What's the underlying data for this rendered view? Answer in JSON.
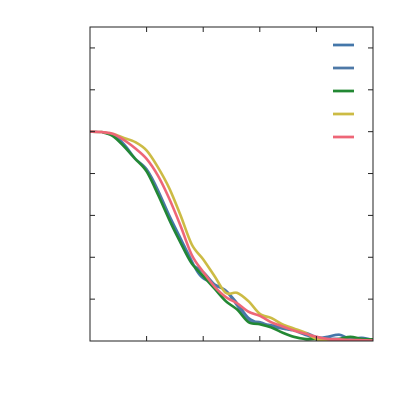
{
  "chart_data": {
    "type": "line",
    "title": "",
    "xlabel": "",
    "ylabel": "",
    "xlim": [
      0,
      5
    ],
    "ylim": [
      0,
      1.5
    ],
    "grid": false,
    "legend": {
      "placement": "top-right",
      "entries_text_visible": false
    },
    "series": [
      {
        "color": "#4477AA",
        "points": [
          [
            0,
            1
          ],
          [
            0.2,
            0.998
          ],
          [
            0.4,
            0.985
          ],
          [
            0.6,
            0.94
          ],
          [
            0.8,
            0.87
          ],
          [
            1.0,
            0.82
          ],
          [
            1.2,
            0.72
          ],
          [
            1.4,
            0.6
          ],
          [
            1.6,
            0.49
          ],
          [
            1.8,
            0.38
          ],
          [
            1.9,
            0.33
          ],
          [
            2.0,
            0.3
          ],
          [
            2.2,
            0.27
          ],
          [
            2.4,
            0.24
          ],
          [
            2.6,
            0.18
          ],
          [
            2.8,
            0.11
          ],
          [
            3.0,
            0.085
          ],
          [
            3.2,
            0.075
          ],
          [
            3.4,
            0.06
          ],
          [
            3.6,
            0.05
          ],
          [
            3.8,
            0.03
          ],
          [
            4.0,
            0.015
          ],
          [
            4.2,
            0.02
          ],
          [
            4.4,
            0.03
          ],
          [
            4.6,
            0.01
          ],
          [
            4.8,
            0.015
          ],
          [
            5.0,
            0.005
          ]
        ]
      },
      {
        "color": "#4E79A7",
        "points": [
          [
            0,
            1
          ],
          [
            0.2,
            0.998
          ],
          [
            0.4,
            0.98
          ],
          [
            0.6,
            0.93
          ],
          [
            0.8,
            0.87
          ],
          [
            1.0,
            0.82
          ],
          [
            1.2,
            0.72
          ],
          [
            1.4,
            0.58
          ],
          [
            1.6,
            0.47
          ],
          [
            1.8,
            0.37
          ],
          [
            2.0,
            0.33
          ],
          [
            2.2,
            0.27
          ],
          [
            2.4,
            0.24
          ],
          [
            2.6,
            0.17
          ],
          [
            2.8,
            0.1
          ],
          [
            3.0,
            0.09
          ],
          [
            3.2,
            0.07
          ],
          [
            3.4,
            0.06
          ],
          [
            3.6,
            0.05
          ],
          [
            3.8,
            0.04
          ],
          [
            4.0,
            0.02
          ],
          [
            4.2,
            0.012
          ],
          [
            4.4,
            0.01
          ],
          [
            4.6,
            0.008
          ],
          [
            4.8,
            0.005
          ],
          [
            5.0,
            0.004
          ]
        ]
      },
      {
        "color": "#228833",
        "points": [
          [
            0,
            1
          ],
          [
            0.2,
            0.998
          ],
          [
            0.4,
            0.98
          ],
          [
            0.6,
            0.93
          ],
          [
            0.8,
            0.87
          ],
          [
            1.0,
            0.81
          ],
          [
            1.2,
            0.7
          ],
          [
            1.4,
            0.58
          ],
          [
            1.6,
            0.47
          ],
          [
            1.8,
            0.37
          ],
          [
            2.0,
            0.31
          ],
          [
            2.2,
            0.25
          ],
          [
            2.4,
            0.19
          ],
          [
            2.6,
            0.15
          ],
          [
            2.8,
            0.09
          ],
          [
            3.0,
            0.08
          ],
          [
            3.2,
            0.065
          ],
          [
            3.4,
            0.04
          ],
          [
            3.6,
            0.02
          ],
          [
            3.8,
            0.01
          ],
          [
            4.0,
            0.01
          ],
          [
            4.2,
            0.005
          ],
          [
            4.4,
            0.01
          ],
          [
            4.6,
            0.02
          ],
          [
            4.8,
            0.01
          ],
          [
            5.0,
            0.008
          ]
        ]
      },
      {
        "color": "#CCBB44",
        "points": [
          [
            0,
            1
          ],
          [
            0.2,
            0.998
          ],
          [
            0.4,
            0.99
          ],
          [
            0.6,
            0.97
          ],
          [
            0.8,
            0.95
          ],
          [
            1.0,
            0.91
          ],
          [
            1.2,
            0.83
          ],
          [
            1.4,
            0.73
          ],
          [
            1.6,
            0.6
          ],
          [
            1.8,
            0.46
          ],
          [
            2.0,
            0.39
          ],
          [
            2.2,
            0.31
          ],
          [
            2.4,
            0.23
          ],
          [
            2.6,
            0.23
          ],
          [
            2.8,
            0.19
          ],
          [
            3.0,
            0.13
          ],
          [
            3.2,
            0.11
          ],
          [
            3.4,
            0.08
          ],
          [
            3.6,
            0.06
          ],
          [
            3.8,
            0.04
          ],
          [
            4.0,
            0.01
          ],
          [
            4.2,
            0.005
          ],
          [
            4.4,
            0.003
          ],
          [
            4.6,
            0.002
          ],
          [
            4.8,
            0.001
          ],
          [
            5.0,
            0.001
          ]
        ]
      },
      {
        "color": "#EE6677",
        "points": [
          [
            0,
            1
          ],
          [
            0.2,
            0.998
          ],
          [
            0.4,
            0.99
          ],
          [
            0.6,
            0.96
          ],
          [
            0.8,
            0.92
          ],
          [
            1.0,
            0.87
          ],
          [
            1.2,
            0.79
          ],
          [
            1.4,
            0.68
          ],
          [
            1.6,
            0.55
          ],
          [
            1.8,
            0.41
          ],
          [
            2.0,
            0.33
          ],
          [
            2.2,
            0.26
          ],
          [
            2.4,
            0.21
          ],
          [
            2.6,
            0.18
          ],
          [
            2.8,
            0.14
          ],
          [
            3.0,
            0.12
          ],
          [
            3.2,
            0.09
          ],
          [
            3.4,
            0.07
          ],
          [
            3.6,
            0.05
          ],
          [
            3.8,
            0.035
          ],
          [
            4.0,
            0.02
          ],
          [
            4.2,
            0.01
          ],
          [
            4.4,
            0.008
          ],
          [
            4.6,
            0.005
          ],
          [
            4.8,
            0.004
          ],
          [
            5.0,
            0.002
          ]
        ]
      }
    ]
  }
}
